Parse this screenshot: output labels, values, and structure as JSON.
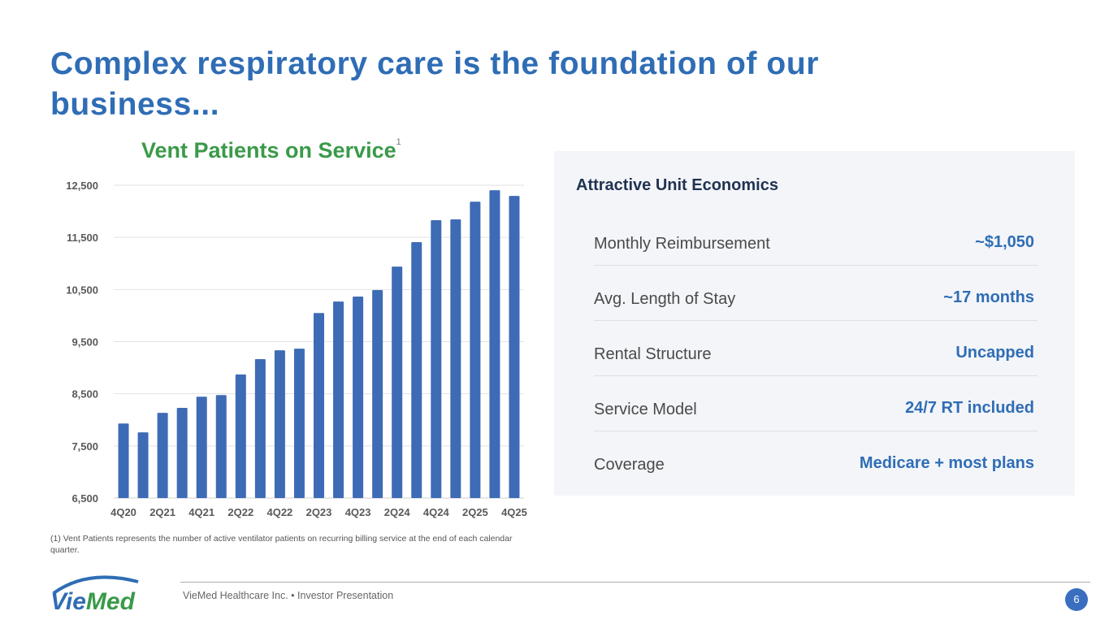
{
  "header": {
    "title": "Complex respiratory care is the foundation of our business..."
  },
  "chart_data": {
    "type": "bar",
    "title": "Vent Patients on Service",
    "title_footnote_marker": "1",
    "xlabel": "",
    "ylabel": "",
    "ylim": [
      6500,
      12500
    ],
    "yticks": [
      6500,
      7500,
      8500,
      9500,
      10500,
      11500,
      12500
    ],
    "ytick_labels": [
      "6,500",
      "7,500",
      "8,500",
      "9,500",
      "10,500",
      "11,500",
      "12,500"
    ],
    "categories": [
      "4Q20",
      "1Q21",
      "2Q21",
      "3Q21",
      "4Q21",
      "1Q22",
      "2Q22",
      "3Q22",
      "4Q22",
      "1Q23",
      "2Q23",
      "3Q23",
      "4Q23",
      "1Q24",
      "2Q24",
      "3Q24",
      "4Q24",
      "1Q25",
      "2Q25",
      "3Q25",
      "4Q25"
    ],
    "xtick_labels_shown": [
      "4Q20",
      "2Q21",
      "4Q21",
      "2Q22",
      "4Q22",
      "2Q23",
      "4Q23",
      "2Q24",
      "4Q24",
      "2Q25",
      "4Q25"
    ],
    "values": [
      7930,
      7760,
      8135,
      8230,
      8445,
      8475,
      8870,
      9165,
      9335,
      9365,
      10050,
      10270,
      10365,
      10490,
      10940,
      11410,
      11830,
      11845,
      12185,
      12405,
      12295
    ],
    "color": "#3e6bb5",
    "grid": true
  },
  "footnote": "(1)  Vent Patients represents the number of active ventilator patients on recurring billing service at the end of each calendar quarter.",
  "panel": {
    "title": "Attractive Unit Economics",
    "rows": [
      {
        "label": "Monthly Reimbursement",
        "value": "~$1,050"
      },
      {
        "label": "Avg. Length of Stay",
        "value": "~17 months"
      },
      {
        "label": "Rental Structure",
        "value": "Uncapped"
      },
      {
        "label": "Service Model",
        "value": "24/7 RT included"
      },
      {
        "label": "Coverage",
        "value": "Medicare + most plans"
      }
    ]
  },
  "footer": {
    "logo_text": "VieMed",
    "text": "VieMed Healthcare Inc.  •  Investor Presentation",
    "page": "6"
  }
}
